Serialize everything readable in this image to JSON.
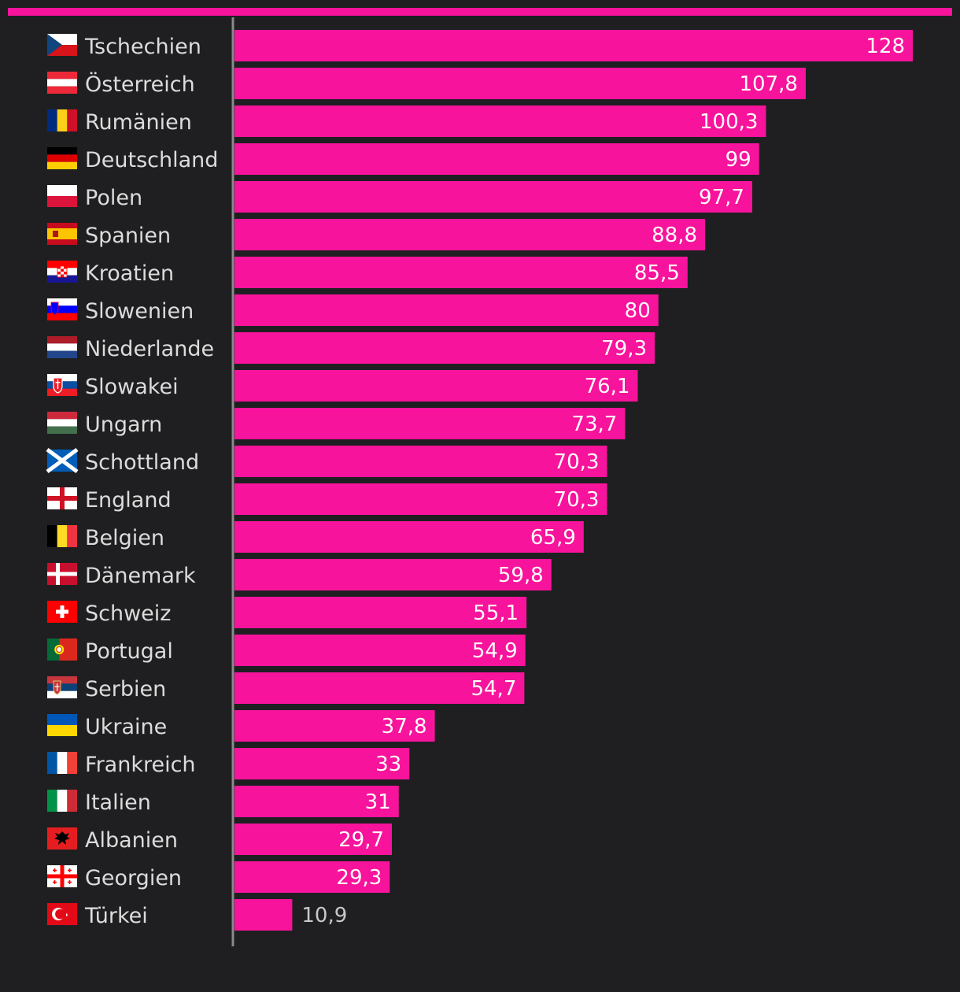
{
  "colors": {
    "background": "#1f1f21",
    "bar": "#f7139b",
    "axis": "#8a8a8a",
    "label": "#dcdcdc",
    "value_inside": "#ffffff",
    "value_outside": "#c8c8c8"
  },
  "chart_data": {
    "type": "bar",
    "orientation": "horizontal",
    "title": "",
    "xlabel": "",
    "ylabel": "",
    "grid": false,
    "legend": "none",
    "xlim": [
      0,
      128
    ],
    "categories": [
      "Tschechien",
      "Österreich",
      "Rumänien",
      "Deutschland",
      "Polen",
      "Spanien",
      "Kroatien",
      "Slowenien",
      "Niederlande",
      "Slowakei",
      "Ungarn",
      "Schottland",
      "England",
      "Belgien",
      "Dänemark",
      "Schweiz",
      "Portugal",
      "Serbien",
      "Ukraine",
      "Frankreich",
      "Italien",
      "Albanien",
      "Georgien",
      "Türkei"
    ],
    "flags": [
      "cz-flag-icon",
      "at-flag-icon",
      "ro-flag-icon",
      "de-flag-icon",
      "pl-flag-icon",
      "es-flag-icon",
      "hr-flag-icon",
      "si-flag-icon",
      "nl-flag-icon",
      "sk-flag-icon",
      "hu-flag-icon",
      "scotland-flag-icon",
      "england-flag-icon",
      "be-flag-icon",
      "dk-flag-icon",
      "ch-flag-icon",
      "pt-flag-icon",
      "rs-flag-icon",
      "ua-flag-icon",
      "fr-flag-icon",
      "it-flag-icon",
      "al-flag-icon",
      "ge-flag-icon",
      "tr-flag-icon"
    ],
    "values": [
      128,
      107.8,
      100.3,
      99,
      97.7,
      88.8,
      85.5,
      80,
      79.3,
      76.1,
      73.7,
      70.3,
      70.3,
      65.9,
      59.8,
      55.1,
      54.9,
      54.7,
      37.8,
      33,
      31,
      29.7,
      29.3,
      10.9
    ],
    "value_labels": [
      "128",
      "107,8",
      "100,3",
      "99",
      "97,7",
      "88,8",
      "85,5",
      "80",
      "79,3",
      "76,1",
      "73,7",
      "70,3",
      "70,3",
      "65,9",
      "59,8",
      "55,1",
      "54,9",
      "54,7",
      "37,8",
      "33",
      "31",
      "29,7",
      "29,3",
      "10,9"
    ]
  }
}
